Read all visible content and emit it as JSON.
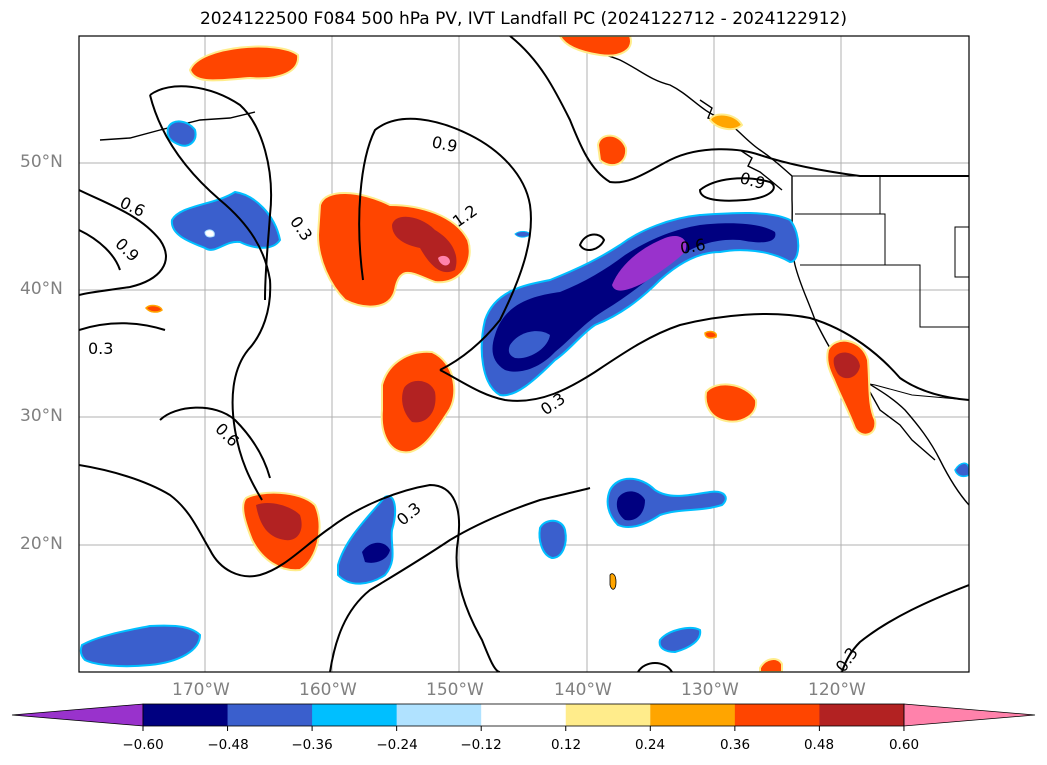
{
  "title": "2024122500 F084 500 hPa PV, IVT Landfall PC (2024122712 - 2024122912)",
  "map": {
    "projection": "mercator",
    "extent": {
      "lon_min": -180,
      "lon_max": -110,
      "lat_min": 10,
      "lat_max": 60
    },
    "lat_labels": [
      {
        "lat": 50,
        "text": "50°N"
      },
      {
        "lat": 40,
        "text": "40°N"
      },
      {
        "lat": 30,
        "text": "30°N"
      },
      {
        "lat": 20,
        "text": "20°N"
      }
    ],
    "lon_labels": [
      {
        "lon": -170,
        "text": "170°W"
      },
      {
        "lon": -160,
        "text": "160°W"
      },
      {
        "lon": -150,
        "text": "150°W"
      },
      {
        "lon": -140,
        "text": "140°W"
      },
      {
        "lon": -130,
        "text": "130°W"
      },
      {
        "lon": -120,
        "text": "120°W"
      }
    ],
    "contour_labels": [
      "0.9",
      "1.2",
      "0.9",
      "0.6",
      "0.6",
      "0.9",
      "0.3",
      "0.3",
      "0.6",
      "0.3",
      "0.3",
      "0.3"
    ]
  },
  "colorbar": {
    "colors": [
      "#9932cc",
      "#000080",
      "#3a5fcd",
      "#00bfff",
      "#b0e2ff",
      "#ffffff",
      "#ffec8b",
      "#ffa500",
      "#ff4500",
      "#b22222",
      "#ff82ab"
    ],
    "ticks": [
      "−0.60",
      "−0.48",
      "−0.36",
      "−0.24",
      "−0.12",
      "0.12",
      "0.24",
      "0.36",
      "0.48",
      "0.60"
    ]
  }
}
